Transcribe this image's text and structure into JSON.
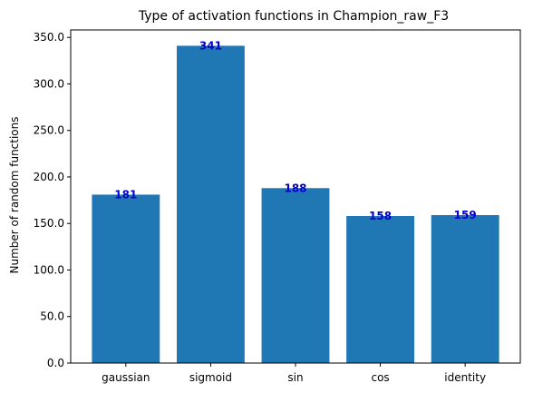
{
  "chart_data": {
    "type": "bar",
    "title": "Type of activation functions in Champion_raw_F3",
    "xlabel": "",
    "ylabel": "Number of random functions",
    "categories": [
      "gaussian",
      "sigmoid",
      "sin",
      "cos",
      "identity"
    ],
    "values": [
      181,
      341,
      188,
      158,
      159
    ],
    "data_labels": [
      "181",
      "341",
      "188",
      "158",
      "159"
    ],
    "ylim": [
      0,
      358
    ],
    "yticks": [
      0,
      50,
      100,
      150,
      200,
      250,
      300,
      350
    ],
    "ytick_labels": [
      "0.0",
      "50.0",
      "100.0",
      "150.0",
      "200.0",
      "250.0",
      "300.0",
      "350.0"
    ],
    "grid": false,
    "legend": "none",
    "bar_color": "#1f77b4",
    "label_color": "#0000cc"
  }
}
